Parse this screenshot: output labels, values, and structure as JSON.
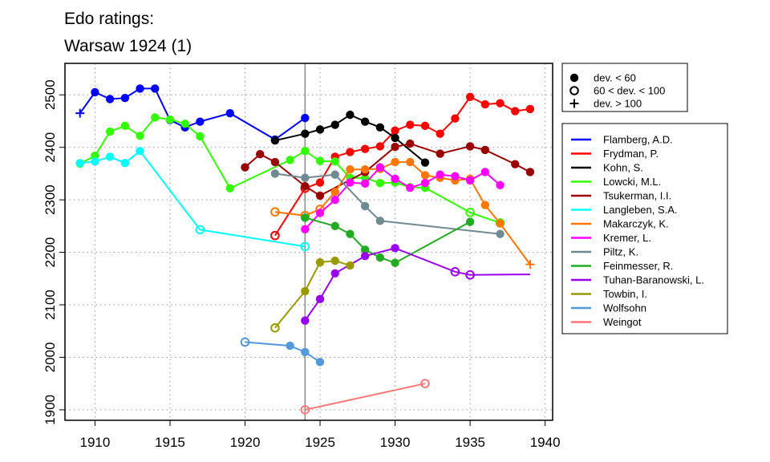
{
  "chart_data": {
    "type": "line",
    "title_lines": [
      "Edo ratings:",
      "Warsaw 1924 (1)"
    ],
    "xlabel": "",
    "ylabel": "",
    "xlim": [
      1908,
      1940.5
    ],
    "ylim": [
      1880,
      2560
    ],
    "xticks": [
      1910,
      1915,
      1920,
      1925,
      1930,
      1935,
      1940
    ],
    "yticks": [
      1900,
      2000,
      2100,
      2200,
      2300,
      2400,
      2500
    ],
    "grid": true,
    "event_year": 1924,
    "marker_legend": [
      {
        "symbol": "filled",
        "label": "dev. < 60"
      },
      {
        "symbol": "open",
        "label": "60 < dev. < 100"
      },
      {
        "symbol": "plus",
        "label": "dev. > 100"
      }
    ],
    "series": [
      {
        "name": "Flamberg, A.D.",
        "color": "#0000ff",
        "x": [
          1909,
          1910,
          1911,
          1912,
          1913,
          1914,
          1915,
          1916,
          1917,
          1919,
          1922,
          1924
        ],
        "y": [
          2465,
          2505,
          2492,
          2494,
          2512,
          2512,
          2452,
          2438,
          2449,
          2465,
          2415,
          2456
        ],
        "m": [
          "plus",
          "filled",
          "filled",
          "filled",
          "filled",
          "filled",
          "filled",
          "filled",
          "filled",
          "filled",
          "filled",
          "filled"
        ]
      },
      {
        "name": "Frydman, P.",
        "color": "#ff0000",
        "x": [
          1922,
          1924,
          1925,
          1926,
          1927,
          1928,
          1929,
          1930,
          1931,
          1932,
          1933,
          1934,
          1935,
          1936,
          1937,
          1938,
          1939
        ],
        "y": [
          2232,
          2322,
          2333,
          2382,
          2391,
          2397,
          2402,
          2432,
          2443,
          2441,
          2426,
          2455,
          2496,
          2482,
          2484,
          2469,
          2473
        ],
        "m": [
          "open",
          "open",
          "filled",
          "filled",
          "filled",
          "filled",
          "filled",
          "filled",
          "filled",
          "filled",
          "filled",
          "filled",
          "filled",
          "filled",
          "filled",
          "filled",
          "filled"
        ]
      },
      {
        "name": "Kohn, S.",
        "color": "#000000",
        "x": [
          1922,
          1924,
          1925,
          1926,
          1927,
          1928,
          1929,
          1930,
          1932
        ],
        "y": [
          2413,
          2426,
          2434,
          2443,
          2462,
          2449,
          2438,
          2418,
          2371
        ],
        "m": [
          "filled",
          "filled",
          "filled",
          "filled",
          "filled",
          "filled",
          "filled",
          "filled",
          "filled"
        ]
      },
      {
        "name": "Lowcki, M.L.",
        "color": "#33ff00",
        "x": [
          1909,
          1910,
          1911,
          1912,
          1913,
          1914,
          1915,
          1916,
          1917,
          1919,
          1923,
          1924,
          1925,
          1926,
          1927,
          1928,
          1929,
          1930,
          1931,
          1932,
          1935,
          1937
        ],
        "y": [
          2369,
          2384,
          2430,
          2441,
          2422,
          2457,
          2453,
          2445,
          2421,
          2322,
          2376,
          2393,
          2374,
          2373,
          2342,
          2342,
          2332,
          2333,
          2324,
          2323,
          2276,
          2256
        ],
        "m": [
          "filled",
          "filled",
          "filled",
          "filled",
          "filled",
          "filled",
          "filled",
          "filled",
          "filled",
          "filled",
          "filled",
          "filled",
          "filled",
          "filled",
          "filled",
          "filled",
          "filled",
          "filled",
          "filled",
          "filled",
          "open",
          "open"
        ]
      },
      {
        "name": "Tsukerman, I.I.",
        "color": "#990000",
        "x": [
          1920,
          1921,
          1922,
          1924,
          1925,
          1928,
          1930,
          1931,
          1933,
          1935,
          1936,
          1938,
          1939
        ],
        "y": [
          2362,
          2387,
          2372,
          2326,
          2308,
          2353,
          2401,
          2407,
          2388,
          2402,
          2395,
          2368,
          2353
        ],
        "m": [
          "filled",
          "filled",
          "filled",
          "filled",
          "filled",
          "filled",
          "filled",
          "filled",
          "filled",
          "filled",
          "filled",
          "filled",
          "filled"
        ]
      },
      {
        "name": "Langleben, S.A.",
        "color": "#00ffff",
        "x": [
          1909,
          1910,
          1911,
          1912,
          1913,
          1917,
          1924
        ],
        "y": [
          2370,
          2373,
          2382,
          2370,
          2393,
          2243,
          2211
        ],
        "m": [
          "filled",
          "filled",
          "filled",
          "filled",
          "filled",
          "open",
          "open"
        ]
      },
      {
        "name": "Makarczyk, K.",
        "color": "#ff7700",
        "x": [
          1922,
          1924,
          1925,
          1926,
          1927,
          1928,
          1929,
          1930,
          1931,
          1932,
          1933,
          1934,
          1935,
          1936,
          1937,
          1939
        ],
        "y": [
          2277,
          2270,
          2282,
          2315,
          2358,
          2358,
          2359,
          2372,
          2372,
          2347,
          2342,
          2337,
          2340,
          2290,
          2255,
          2177
        ],
        "m": [
          "open",
          "open",
          "open",
          "filled",
          "filled",
          "filled",
          "filled",
          "filled",
          "filled",
          "filled",
          "filled",
          "filled",
          "filled",
          "filled",
          "filled",
          "plus"
        ]
      },
      {
        "name": "Kremer, L.",
        "color": "#ff00ff",
        "x": [
          1924,
          1925,
          1926,
          1927,
          1928,
          1929,
          1930,
          1931,
          1932,
          1933,
          1934,
          1935,
          1936,
          1937
        ],
        "y": [
          2244,
          2275,
          2300,
          2333,
          2331,
          2362,
          2340,
          2323,
          2332,
          2348,
          2345,
          2337,
          2353,
          2328
        ],
        "m": [
          "filled",
          "filled",
          "filled",
          "filled",
          "filled",
          "filled",
          "filled",
          "filled",
          "filled",
          "filled",
          "filled",
          "filled",
          "filled",
          "filled"
        ]
      },
      {
        "name": "Piltz, K.",
        "color": "#6f8a91",
        "x": [
          1922,
          1924,
          1926,
          1928,
          1929,
          1937
        ],
        "y": [
          2350,
          2342,
          2348,
          2288,
          2260,
          2235
        ],
        "m": [
          "filled",
          "filled",
          "filled",
          "filled",
          "filled",
          "filled"
        ]
      },
      {
        "name": "Feinmesser, R.",
        "color": "#22aa22",
        "x": [
          1924,
          1926,
          1927,
          1928,
          1929,
          1930,
          1935
        ],
        "y": [
          2266,
          2250,
          2235,
          2205,
          2190,
          2180,
          2258
        ],
        "m": [
          "filled",
          "filled",
          "filled",
          "filled",
          "filled",
          "filled",
          "filled"
        ]
      },
      {
        "name": "Tuhan-Baranowski, L.",
        "color": "#9900ee",
        "x": [
          1924,
          1925,
          1926,
          1928,
          1930,
          1934,
          1935,
          1939
        ],
        "y": [
          2070,
          2111,
          2160,
          2193,
          2208,
          2163,
          2157,
          2158
        ],
        "m": [
          "filled",
          "filled",
          "filled",
          "filled",
          "filled",
          "open",
          "open",
          "none"
        ]
      },
      {
        "name": "Towbin, I.",
        "color": "#999900",
        "x": [
          1922,
          1924,
          1925,
          1926,
          1927
        ],
        "y": [
          2056,
          2126,
          2181,
          2184,
          2175
        ],
        "m": [
          "open",
          "filled",
          "filled",
          "filled",
          "filled"
        ]
      },
      {
        "name": "Wolfsohn",
        "color": "#5599dd",
        "x": [
          1920,
          1923,
          1924,
          1925
        ],
        "y": [
          2029,
          2022,
          2010,
          1991
        ],
        "m": [
          "open",
          "filled",
          "filled",
          "filled"
        ]
      },
      {
        "name": "Weingot",
        "color": "#ff7777",
        "x": [
          1924,
          1932
        ],
        "y": [
          1900,
          1950
        ],
        "m": [
          "open",
          "open"
        ]
      }
    ]
  }
}
